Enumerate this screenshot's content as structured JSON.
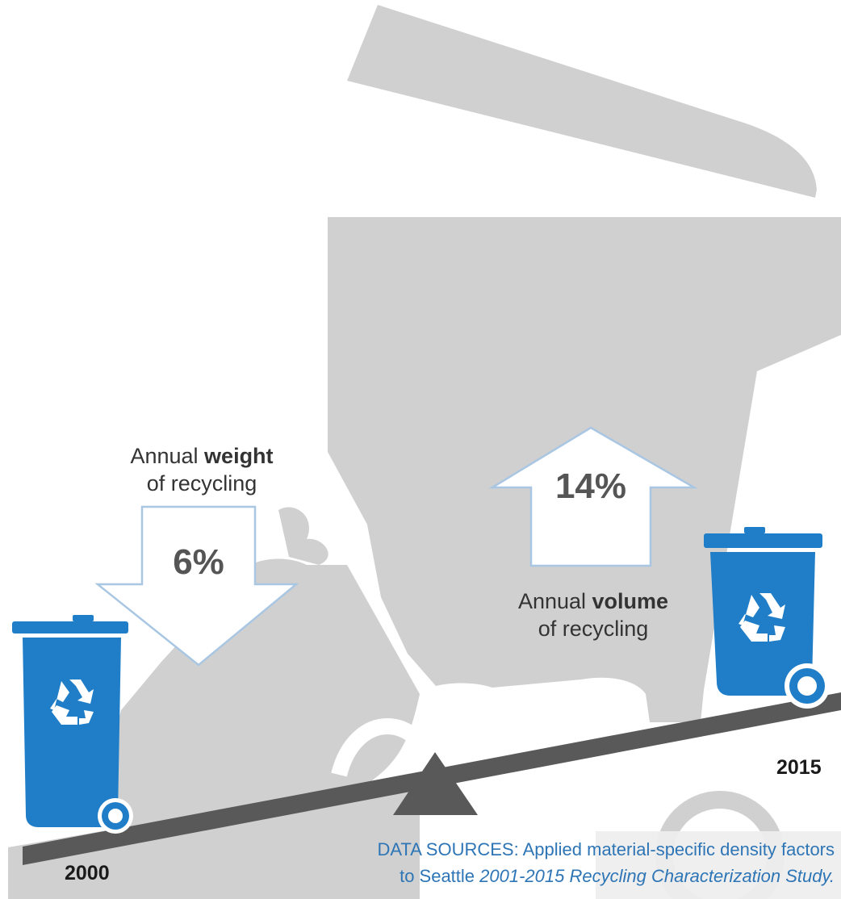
{
  "weight": {
    "label_prefix": "Annual",
    "label_bold": "weight",
    "label_suffix": "of recycling",
    "direction": "down",
    "percent": "6%"
  },
  "volume": {
    "label_prefix": "Annual",
    "label_bold": "volume",
    "label_suffix": "of recycling",
    "direction": "up",
    "percent": "14%"
  },
  "years": {
    "start": "2000",
    "end": "2015"
  },
  "sources": {
    "prefix": "DATA SOURCES: Applied material-specific density factors",
    "line2_prefix": "to Seattle",
    "line2_italic": "2001-2015 Recycling Characterization Study."
  },
  "colors": {
    "background_shapes": "#d0d0d0",
    "bin_blue": "#1f7ec7",
    "seesaw": "#595959",
    "arrow_outline": "#a9c6e3",
    "source_text": "#2e75b6"
  },
  "icons": {
    "bins": "recycling-bin-icon",
    "symbol": "recycle-icon"
  }
}
